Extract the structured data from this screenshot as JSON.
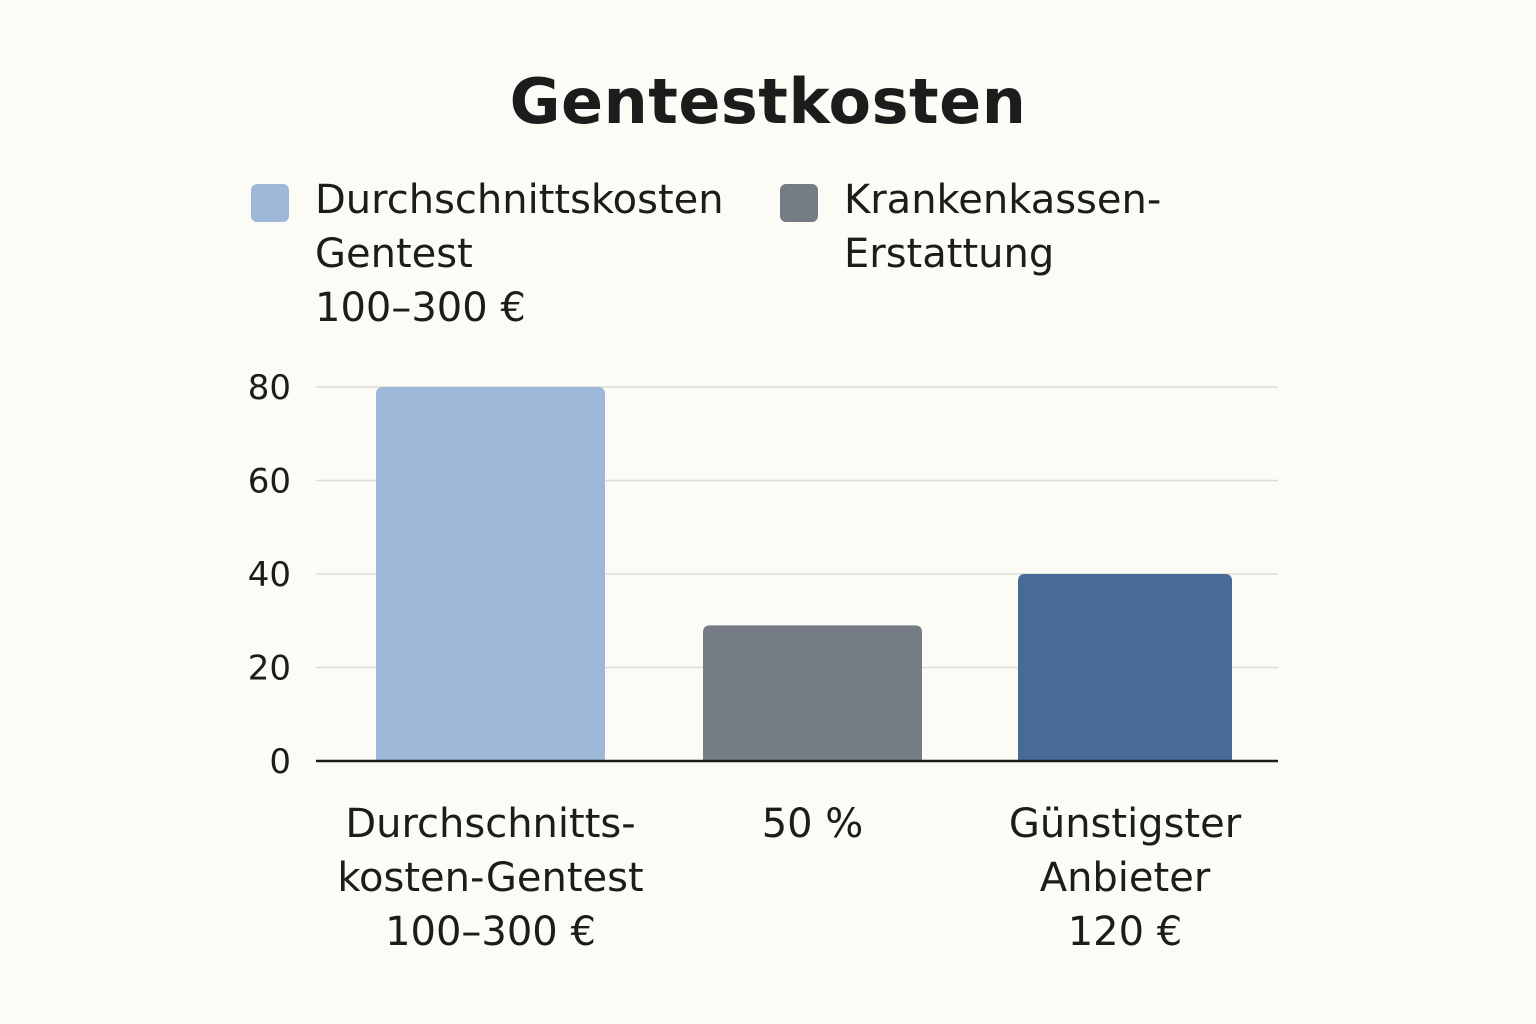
{
  "chart_data": {
    "type": "bar",
    "title": "Gentestkosten",
    "categories": [
      [
        "Durchschnitts-",
        "kosten-Gentest",
        "100–300 €"
      ],
      [
        "50 %"
      ],
      [
        "Günstigster",
        "Anbieter",
        "120 €"
      ]
    ],
    "values": [
      80,
      29,
      40
    ],
    "colors": [
      "#9db8d9",
      "#757c86",
      "#476b96"
    ],
    "ylim": [
      0,
      80
    ],
    "yticks": [
      0,
      20,
      40,
      60,
      80
    ],
    "grid": true,
    "legend_position": "top",
    "legend": [
      {
        "label_lines": [
          "Durchschnittskosten",
          "Gentest",
          "100–300 €"
        ],
        "color": "#9db8d9"
      },
      {
        "label_lines": [
          "Krankenkassen-",
          "Erstattung"
        ],
        "color": "#757c86"
      }
    ]
  }
}
